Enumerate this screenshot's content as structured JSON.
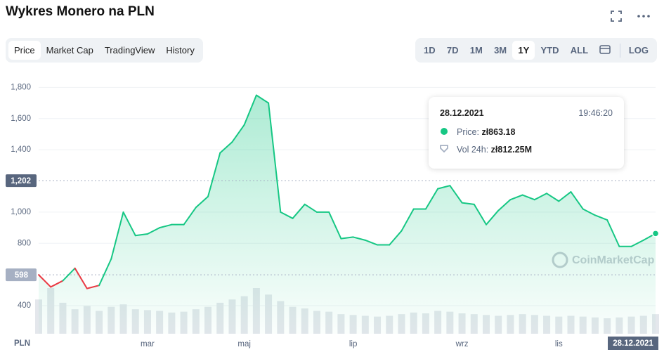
{
  "title": "Wykres Monero na PLN",
  "tabs": [
    "Price",
    "Market Cap",
    "TradingView",
    "History"
  ],
  "ranges": [
    "1D",
    "7D",
    "1M",
    "3M",
    "1Y",
    "YTD",
    "ALL"
  ],
  "log": "LOG",
  "tooltip": {
    "date": "28.12.2021",
    "time": "19:46:20",
    "price_label": "Price:",
    "price": "zł863.18",
    "vol_label": "Vol 24h:",
    "vol": "zł812.25M"
  },
  "watermark": "CoinMarketCap",
  "chart_data": {
    "type": "line",
    "currency": "PLN",
    "end_label": "28.12.2021",
    "categories": [
      null,
      null,
      null,
      null,
      null,
      null,
      null,
      null,
      null,
      "mar",
      null,
      null,
      null,
      null,
      null,
      null,
      null,
      "maj",
      null,
      null,
      null,
      null,
      null,
      null,
      null,
      null,
      "lip",
      null,
      null,
      null,
      null,
      null,
      null,
      null,
      null,
      "wrz",
      null,
      null,
      null,
      null,
      null,
      null,
      null,
      "lis",
      null,
      null,
      null,
      null,
      null,
      null,
      null,
      null
    ],
    "values": [
      598,
      520,
      560,
      640,
      510,
      530,
      700,
      1000,
      850,
      860,
      900,
      920,
      920,
      1030,
      1100,
      1380,
      1450,
      1560,
      1750,
      1700,
      1000,
      960,
      1050,
      1000,
      1000,
      830,
      840,
      820,
      790,
      790,
      880,
      1020,
      1020,
      1150,
      1170,
      1060,
      1050,
      920,
      1010,
      1080,
      1110,
      1080,
      1120,
      1070,
      1130,
      1020,
      980,
      950,
      780,
      780,
      820,
      863
    ],
    "volume": [
      420,
      560,
      380,
      300,
      340,
      280,
      330,
      360,
      300,
      290,
      280,
      260,
      270,
      300,
      330,
      380,
      420,
      460,
      560,
      480,
      400,
      330,
      310,
      280,
      270,
      240,
      230,
      220,
      210,
      220,
      240,
      260,
      250,
      280,
      270,
      250,
      240,
      230,
      220,
      230,
      240,
      230,
      220,
      210,
      220,
      210,
      200,
      190,
      200,
      210,
      220,
      240
    ],
    "up_color": "#16c784",
    "down_color": "#ea3943",
    "baseline": 598,
    "crosshair": {
      "value": 1202,
      "label": "1,202"
    },
    "ylim": [
      220,
      1910
    ],
    "yticks": [
      400,
      800,
      {
        "value": 1000,
        "label": "1,000"
      },
      {
        "value": 1400,
        "label": "1,400"
      },
      {
        "value": 1600,
        "label": "1,600"
      },
      {
        "value": 1800,
        "label": "1,800"
      }
    ],
    "grid": true
  }
}
